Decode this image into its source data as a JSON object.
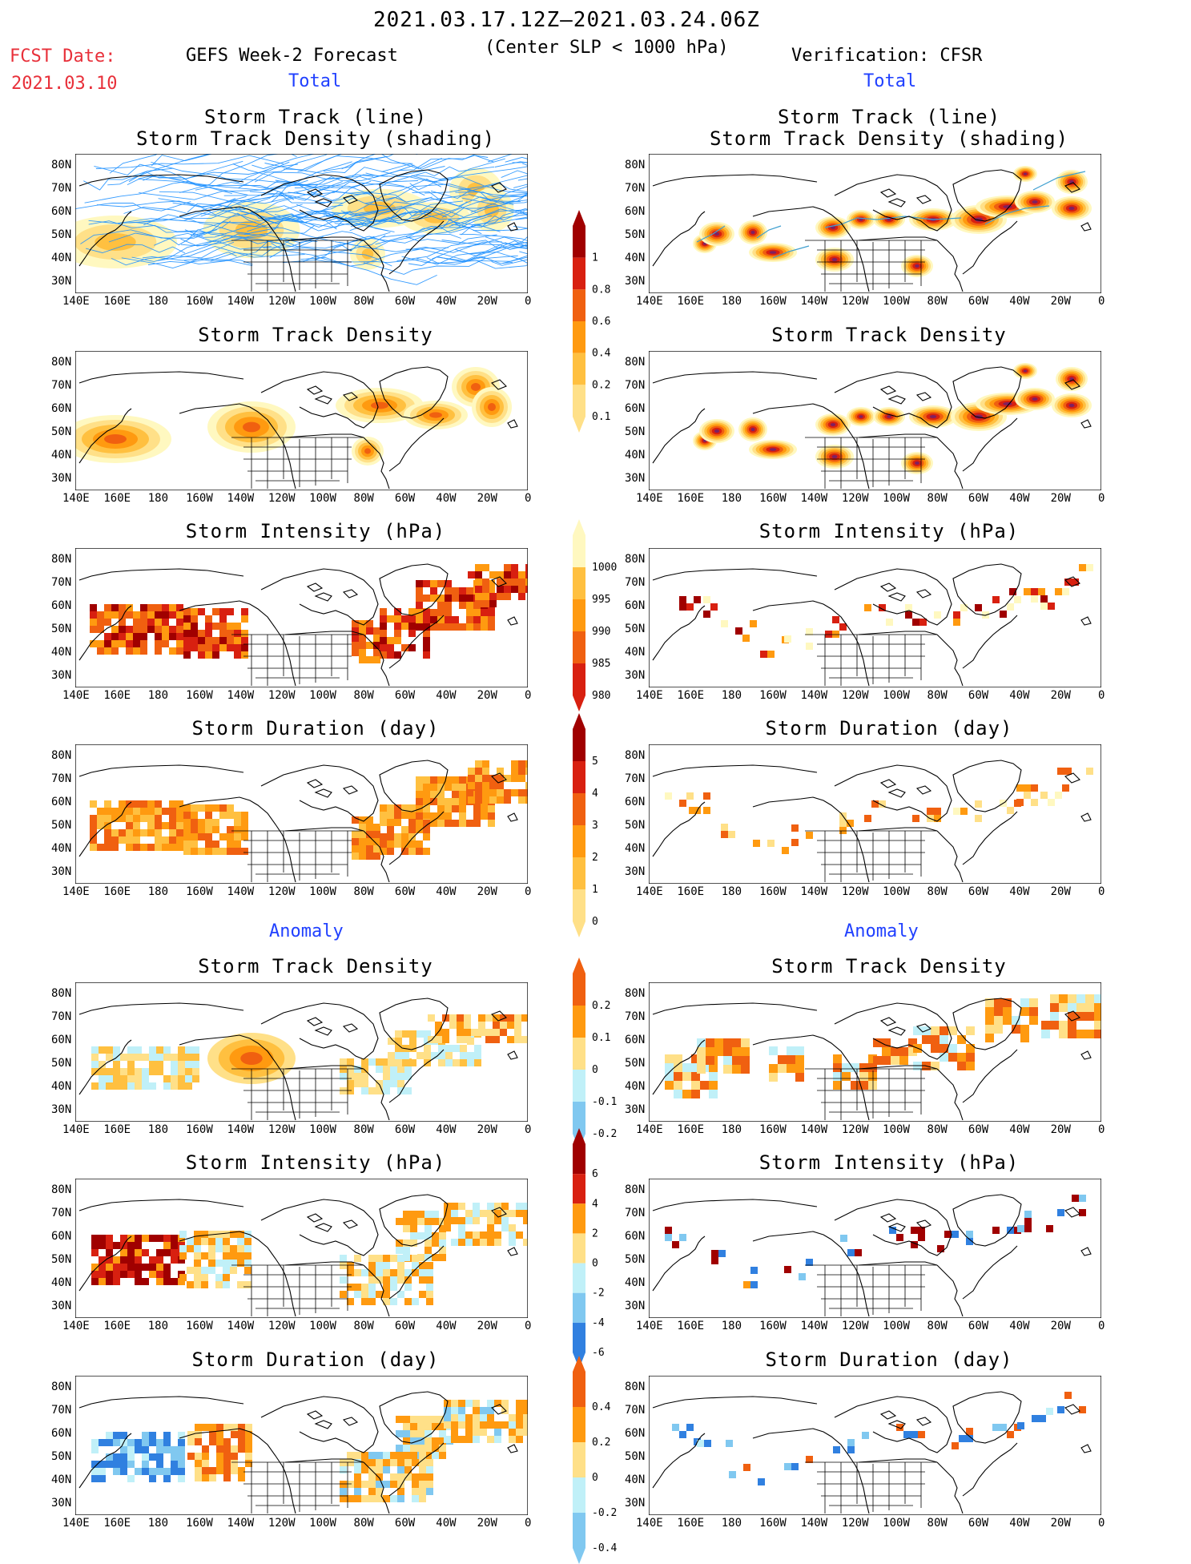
{
  "header": {
    "date_range": "2021.03.17.12Z–2021.03.24.06Z",
    "criterion": "(Center SLP < 1000 hPa)",
    "fcst_label": "FCST Date:",
    "fcst_date": "2021.03.10",
    "left_model": "GEFS Week-2 Forecast",
    "right_model": "Verification: CFSR",
    "section_total": "Total",
    "section_anomaly": "Anomaly"
  },
  "panel_titles": {
    "track_line": "Storm Track (line)",
    "track_shading": "Storm Track Density (shading)",
    "density": "Storm Track Density",
    "intensity": "Storm Intensity (hPa)",
    "duration": "Storm Duration (day)"
  },
  "axes": {
    "lon_labels": [
      "140E",
      "160E",
      "180",
      "160W",
      "140W",
      "120W",
      "100W",
      "80W",
      "60W",
      "40W",
      "20W",
      "0"
    ],
    "lat_labels": [
      "80N",
      "70N",
      "60N",
      "50N",
      "40N",
      "30N"
    ]
  },
  "colorbars": {
    "density_total": [
      "0.1",
      "0.2",
      "0.4",
      "0.6",
      "0.8",
      "1"
    ],
    "intensity_total": [
      "1000",
      "995",
      "990",
      "985",
      "980"
    ],
    "duration_total": [
      "0",
      "1",
      "2",
      "3",
      "4",
      "5"
    ],
    "density_anom": [
      "0.2",
      "0.1",
      "0",
      "-0.1",
      "-0.2"
    ],
    "intensity_anom": [
      "6",
      "4",
      "2",
      "0",
      "-2",
      "-4",
      "-6"
    ],
    "duration_anom": [
      "0.4",
      "0.2",
      "0",
      "-0.2",
      "-0.4"
    ]
  },
  "colors": {
    "yellow_light": "#fff8c0",
    "yellow": "#ffe088",
    "orange_light": "#ffc040",
    "orange": "#ff9a10",
    "orange_dark": "#f06010",
    "red": "#d82010",
    "dark_red": "#a00000",
    "cyan_light": "#c0f0f8",
    "blue_light": "#80c8f0",
    "blue": "#3080e0",
    "track_line": "#1e90ff"
  }
}
